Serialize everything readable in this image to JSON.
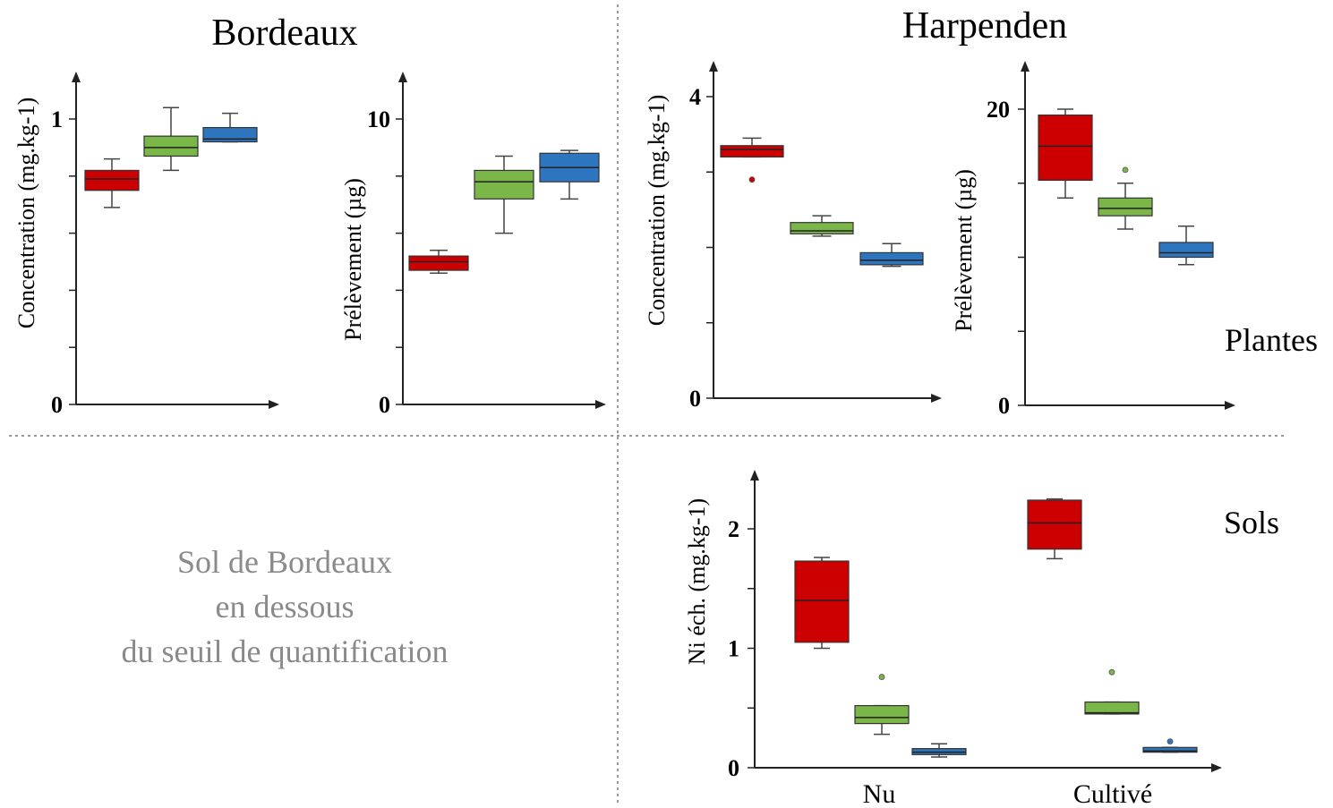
{
  "titles": {
    "left": "Bordeaux",
    "right": "Harpenden"
  },
  "side_labels": {
    "plants": "Plantes",
    "soils": "Sols"
  },
  "note": {
    "line1": "Sol de Bordeaux",
    "line2": "en dessous",
    "line3": "du seuil de quantification"
  },
  "colors": {
    "red": "#cc0000",
    "green": "#7ab648",
    "blue": "#2e75c0",
    "divider": "#999999"
  },
  "chart_data": [
    {
      "id": "bordeaux-concentration",
      "type": "box",
      "group": "Bordeaux",
      "ylabel": "Concentration (mg.kg-1)",
      "ylim": [
        0,
        1.1
      ],
      "yticks": [
        0,
        0.2,
        0.4,
        0.6,
        0.8,
        1
      ],
      "ytick_labels": {
        "0": "0",
        "1": "1"
      },
      "boxes": [
        {
          "color": "red",
          "min": 0.69,
          "q1": 0.75,
          "median": 0.79,
          "q3": 0.82,
          "max": 0.86,
          "outliers": []
        },
        {
          "color": "green",
          "min": 0.82,
          "q1": 0.87,
          "median": 0.9,
          "q3": 0.94,
          "max": 1.04,
          "outliers": []
        },
        {
          "color": "blue",
          "min": 0.92,
          "q1": 0.92,
          "median": 0.93,
          "q3": 0.97,
          "max": 1.02,
          "outliers": []
        }
      ]
    },
    {
      "id": "bordeaux-uptake",
      "type": "box",
      "group": "Bordeaux",
      "ylabel": "Prélèvement (µg)",
      "ylim": [
        0,
        11
      ],
      "yticks": [
        0,
        2,
        4,
        6,
        8,
        10
      ],
      "ytick_labels": {
        "0": "0",
        "10": "10"
      },
      "boxes": [
        {
          "color": "red",
          "min": 4.6,
          "q1": 4.7,
          "median": 5.0,
          "q3": 5.2,
          "max": 5.4,
          "outliers": []
        },
        {
          "color": "green",
          "min": 6.0,
          "q1": 7.2,
          "median": 7.8,
          "q3": 8.2,
          "max": 8.7,
          "outliers": []
        },
        {
          "color": "blue",
          "min": 7.2,
          "q1": 7.8,
          "median": 8.3,
          "q3": 8.8,
          "max": 8.9,
          "outliers": []
        }
      ]
    },
    {
      "id": "harpenden-concentration",
      "type": "box",
      "group": "Harpenden",
      "ylabel": "Concentration (mg.kg-1)",
      "ylim": [
        0,
        4.4
      ],
      "yticks": [
        0,
        1,
        2,
        3,
        4
      ],
      "ytick_labels": {
        "0": "0",
        "4": "4"
      },
      "boxes": [
        {
          "color": "red",
          "min": 3.2,
          "q1": 3.2,
          "median": 3.3,
          "q3": 3.35,
          "max": 3.45,
          "outliers": [
            2.9
          ]
        },
        {
          "color": "green",
          "min": 2.15,
          "q1": 2.18,
          "median": 2.22,
          "q3": 2.33,
          "max": 2.42,
          "outliers": []
        },
        {
          "color": "blue",
          "min": 1.75,
          "q1": 1.77,
          "median": 1.83,
          "q3": 1.93,
          "max": 2.05,
          "outliers": []
        }
      ]
    },
    {
      "id": "harpenden-uptake",
      "type": "box",
      "group": "Harpenden",
      "ylabel": "Prélèvement (µg)",
      "ylim": [
        0,
        23
      ],
      "yticks": [
        0,
        5,
        10,
        15,
        20
      ],
      "ytick_labels": {
        "0": "0",
        "20": "20"
      },
      "boxes": [
        {
          "color": "red",
          "min": 14.0,
          "q1": 15.2,
          "median": 17.5,
          "q3": 19.6,
          "max": 20.0,
          "outliers": []
        },
        {
          "color": "green",
          "min": 11.9,
          "q1": 12.8,
          "median": 13.3,
          "q3": 14.0,
          "max": 15.0,
          "outliers": [
            15.9
          ]
        },
        {
          "color": "blue",
          "min": 9.5,
          "q1": 10.0,
          "median": 10.3,
          "q3": 11.0,
          "max": 12.1,
          "outliers": []
        }
      ]
    },
    {
      "id": "harpenden-soil",
      "type": "box",
      "group": "Harpenden",
      "ylabel": "Ni éch. (mg.kg-1)",
      "ylim": [
        0,
        2.5
      ],
      "yticks": [
        0,
        0.5,
        1,
        1.5,
        2
      ],
      "ytick_labels": {
        "0": "0",
        "1": "1",
        "2": "2"
      },
      "categories": [
        "Nu",
        "Cultivé"
      ],
      "boxes": [
        {
          "color": "red",
          "category": "Nu",
          "min": 1.0,
          "q1": 1.05,
          "median": 1.4,
          "q3": 1.73,
          "max": 1.76,
          "outliers": []
        },
        {
          "color": "green",
          "category": "Nu",
          "min": 0.28,
          "q1": 0.37,
          "median": 0.42,
          "q3": 0.52,
          "max": 0.52,
          "outliers": [
            0.76
          ]
        },
        {
          "color": "blue",
          "category": "Nu",
          "min": 0.09,
          "q1": 0.11,
          "median": 0.13,
          "q3": 0.16,
          "max": 0.2,
          "outliers": []
        },
        {
          "color": "red",
          "category": "Cultivé",
          "min": 1.75,
          "q1": 1.83,
          "median": 2.05,
          "q3": 2.24,
          "max": 2.25,
          "outliers": []
        },
        {
          "color": "green",
          "category": "Cultivé",
          "min": 0.45,
          "q1": 0.45,
          "median": 0.46,
          "q3": 0.55,
          "max": 0.55,
          "outliers": [
            0.8
          ]
        },
        {
          "color": "blue",
          "category": "Cultivé",
          "min": 0.13,
          "q1": 0.13,
          "median": 0.14,
          "q3": 0.17,
          "max": 0.17,
          "outliers": [
            0.22
          ]
        }
      ]
    }
  ]
}
